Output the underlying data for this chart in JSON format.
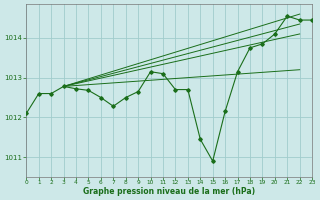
{
  "title": "Graphe pression niveau de la mer (hPa)",
  "bg_color": "#cde8e8",
  "grid_color": "#a0cccc",
  "line_color": "#1a6e1a",
  "xlim": [
    0,
    23
  ],
  "ylim": [
    1010.5,
    1014.85
  ],
  "yticks": [
    1011,
    1012,
    1013,
    1014
  ],
  "xtick_labels": [
    "0",
    "1",
    "2",
    "3",
    "4",
    "5",
    "6",
    "7",
    "8",
    "9",
    "10",
    "11",
    "12",
    "13",
    "14",
    "15",
    "16",
    "17",
    "18",
    "19",
    "20",
    "21",
    "22",
    "23"
  ],
  "main_y": [
    1012.1,
    1012.6,
    1012.6,
    1012.78,
    1012.72,
    1012.68,
    1012.5,
    1012.28,
    1012.5,
    1012.65,
    1013.15,
    1013.1,
    1012.7,
    1012.7,
    1011.45,
    1010.9,
    1012.15,
    1013.15,
    1013.75,
    1013.85,
    1014.1,
    1014.55,
    1014.45,
    1014.45
  ],
  "straight_lines": [
    {
      "x0": 3,
      "y0": 1012.78,
      "x1": 22,
      "y1": 1014.6
    },
    {
      "x0": 3,
      "y0": 1012.78,
      "x1": 22,
      "y1": 1014.35
    },
    {
      "x0": 3,
      "y0": 1012.78,
      "x1": 22,
      "y1": 1014.1
    },
    {
      "x0": 3,
      "y0": 1012.78,
      "x1": 22,
      "y1": 1013.2
    }
  ]
}
